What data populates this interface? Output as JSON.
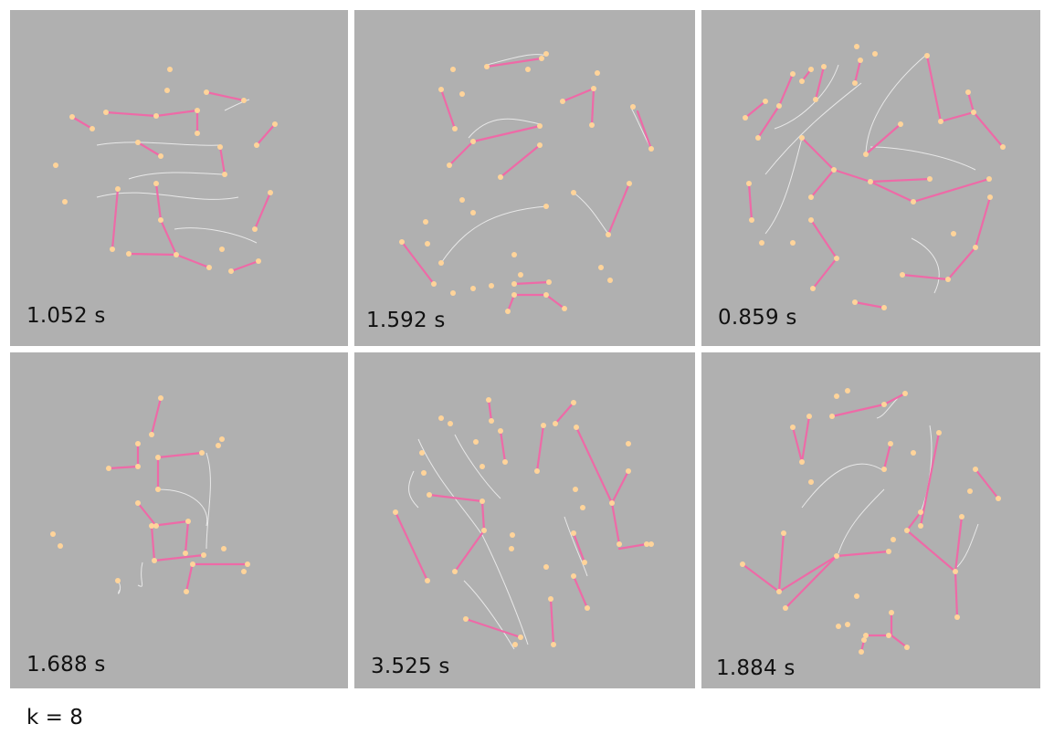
{
  "figure": {
    "panels": [
      {
        "id": "p1",
        "time_label": "1.052 s"
      },
      {
        "id": "p2",
        "time_label": "1.592 s"
      },
      {
        "id": "p3",
        "time_label": "0.859 s"
      },
      {
        "id": "p4",
        "time_label": "1.688 s"
      },
      {
        "id": "p5",
        "time_label": "3.525 s"
      },
      {
        "id": "p6",
        "time_label": "1.884 s"
      }
    ],
    "caption": "k = 8"
  },
  "colors": {
    "panel_background": "#b0b0b0",
    "tree_edge": "#ee6aa7",
    "path_edge": "#e8e8e8",
    "node": "#ffd49a"
  }
}
